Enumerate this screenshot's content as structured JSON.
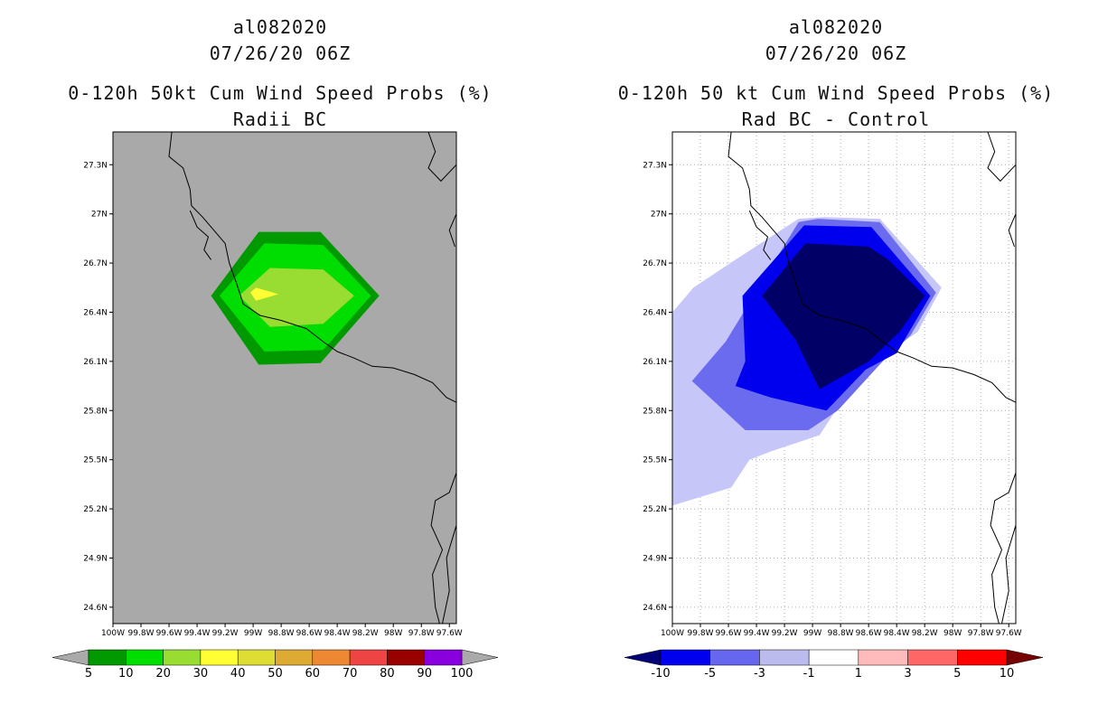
{
  "chart_data": [
    {
      "type": "heatmap",
      "storm_id": "al082020",
      "datetime": "07/26/20 06Z",
      "title": "0-120h 50kt Cum Wind Speed Probs (%)",
      "subtitle": "Radii BC",
      "x_tick_labels": [
        "100W",
        "99.8W",
        "99.6W",
        "99.4W",
        "99.2W",
        "99W",
        "98.8W",
        "98.6W",
        "98.4W",
        "98.2W",
        "98W",
        "97.8W",
        "97.6W"
      ],
      "y_tick_labels": [
        "27.3N",
        "27N",
        "26.7N",
        "26.4N",
        "26.1N",
        "25.8N",
        "25.5N",
        "25.2N",
        "24.9N",
        "24.6N"
      ],
      "xlim": [
        -100.0,
        -97.55
      ],
      "ylim": [
        24.5,
        27.5
      ],
      "grid": false,
      "background": "#a9a9a9",
      "colorbar": {
        "labels": [
          "5",
          "10",
          "20",
          "30",
          "40",
          "50",
          "60",
          "70",
          "80",
          "90",
          "100"
        ],
        "colors": [
          "#009900",
          "#00dd00",
          "#99dd33",
          "#ffff33",
          "#dddd33",
          "#ddaa33",
          "#ee8833",
          "#ee4444",
          "#990000",
          "#8800dd"
        ],
        "ends": [
          "#aaaaaa",
          "#aaaaaa"
        ]
      },
      "levels": [
        {
          "range": "5-10",
          "color": "#009900",
          "polygon": [
            [
              -99.3,
              26.5
            ],
            [
              -98.96,
              26.89
            ],
            [
              -98.52,
              26.89
            ],
            [
              -98.1,
              26.5
            ],
            [
              -98.52,
              26.09
            ],
            [
              -98.96,
              26.08
            ]
          ]
        },
        {
          "range": "10-20",
          "color": "#00dd00",
          "polygon": [
            [
              -99.24,
              26.5
            ],
            [
              -98.92,
              26.82
            ],
            [
              -98.5,
              26.81
            ],
            [
              -98.16,
              26.5
            ],
            [
              -98.5,
              26.17
            ],
            [
              -98.92,
              26.16
            ]
          ]
        },
        {
          "range": "20-30",
          "color": "#99dd33",
          "polygon": [
            [
              -99.1,
              26.5
            ],
            [
              -98.88,
              26.67
            ],
            [
              -98.5,
              26.66
            ],
            [
              -98.28,
              26.5
            ],
            [
              -98.5,
              26.33
            ],
            [
              -98.88,
              26.31
            ]
          ]
        },
        {
          "range": "30-40",
          "color": "#ffff33",
          "polygon": [
            [
              -99.02,
              26.52
            ],
            [
              -98.98,
              26.55
            ],
            [
              -98.82,
              26.51
            ],
            [
              -98.98,
              26.47
            ]
          ]
        }
      ]
    },
    {
      "type": "heatmap",
      "storm_id": "al082020",
      "datetime": "07/26/20 06Z",
      "title": "0-120h 50 kt Cum Wind Speed Probs (%)",
      "subtitle": "Rad BC - Control",
      "x_tick_labels": [
        "100W",
        "99.8W",
        "99.6W",
        "99.4W",
        "99.2W",
        "99W",
        "98.8W",
        "98.6W",
        "98.4W",
        "98.2W",
        "98W",
        "97.8W",
        "97.6W"
      ],
      "y_tick_labels": [
        "27.3N",
        "27N",
        "26.7N",
        "26.4N",
        "26.1N",
        "25.8N",
        "25.5N",
        "25.2N",
        "24.9N",
        "24.6N"
      ],
      "xlim": [
        -100.0,
        -97.55
      ],
      "ylim": [
        24.5,
        27.5
      ],
      "grid": true,
      "background": "#ffffff",
      "colorbar": {
        "labels": [
          "-10",
          "-5",
          "-3",
          "-1",
          "1",
          "3",
          "5",
          "10"
        ],
        "colors": [
          "#0000ee",
          "#6666ee",
          "#bbbbee",
          "#ffffff",
          "#ffbbbb",
          "#ff6666",
          "#ff0000"
        ],
        "ends": [
          "#000077",
          "#770000"
        ]
      },
      "levels": [
        {
          "range": "-3 to -1",
          "color": "#c6c6f8",
          "polygon": [
            [
              -100,
              26.4
            ],
            [
              -99.85,
              26.55
            ],
            [
              -99.55,
              26.72
            ],
            [
              -99.1,
              26.97
            ],
            [
              -98.92,
              26.98
            ],
            [
              -98.52,
              26.97
            ],
            [
              -98.08,
              26.55
            ],
            [
              -98.25,
              26.28
            ],
            [
              -98.52,
              26.12
            ],
            [
              -98.82,
              25.82
            ],
            [
              -98.95,
              25.65
            ],
            [
              -99.3,
              25.55
            ],
            [
              -99.45,
              25.5
            ],
            [
              -99.58,
              25.33
            ],
            [
              -100,
              25.22
            ]
          ]
        },
        {
          "range": "-5 to -3",
          "color": "#6b6bf0",
          "polygon": [
            [
              -99.86,
              25.98
            ],
            [
              -99.62,
              26.22
            ],
            [
              -99.42,
              26.5
            ],
            [
              -99.1,
              26.95
            ],
            [
              -98.96,
              26.97
            ],
            [
              -98.52,
              26.95
            ],
            [
              -98.12,
              26.52
            ],
            [
              -98.3,
              26.26
            ],
            [
              -98.5,
              26.1
            ],
            [
              -98.82,
              25.8
            ],
            [
              -99.03,
              25.68
            ],
            [
              -99.48,
              25.68
            ]
          ]
        },
        {
          "range": "-10 to -5",
          "color": "#0000ee",
          "polygon": [
            [
              -99.5,
              26.5
            ],
            [
              -99.06,
              26.93
            ],
            [
              -98.58,
              26.92
            ],
            [
              -98.16,
              26.5
            ],
            [
              -98.4,
              26.15
            ],
            [
              -98.62,
              26.05
            ],
            [
              -98.9,
              25.8
            ],
            [
              -99.3,
              25.88
            ],
            [
              -99.55,
              25.95
            ],
            [
              -99.48,
              26.1
            ]
          ]
        },
        {
          "range": "< -10",
          "color": "#000066",
          "polygon": [
            [
              -99.36,
              26.5
            ],
            [
              -99.05,
              26.82
            ],
            [
              -98.6,
              26.8
            ],
            [
              -98.46,
              26.72
            ],
            [
              -98.2,
              26.5
            ],
            [
              -98.38,
              26.28
            ],
            [
              -98.6,
              26.1
            ],
            [
              -98.95,
              25.93
            ],
            [
              -99.12,
              26.23
            ]
          ]
        }
      ]
    }
  ]
}
